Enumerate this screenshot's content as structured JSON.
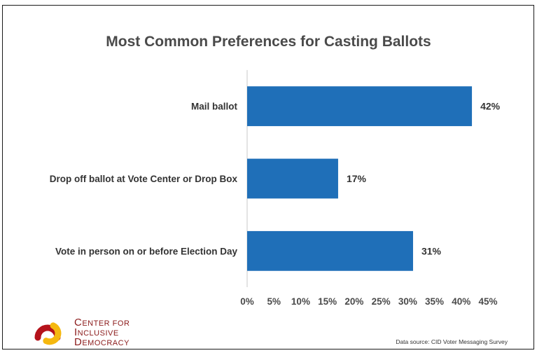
{
  "chart_data": {
    "type": "bar",
    "orientation": "horizontal",
    "title": "Most Common Preferences for Casting Ballots",
    "categories": [
      "Mail ballot",
      "Drop off ballot at Vote Center or Drop Box",
      "Vote in person on or before Election Day"
    ],
    "values": [
      42,
      17,
      31
    ],
    "value_labels": [
      "42%",
      "17%",
      "31%"
    ],
    "xlim": [
      0,
      45
    ],
    "xticks": [
      0,
      5,
      10,
      15,
      20,
      25,
      30,
      35,
      40,
      45
    ],
    "xtick_labels": [
      "0%",
      "5%",
      "10%",
      "15%",
      "20%",
      "25%",
      "30%",
      "35%",
      "40%",
      "45%"
    ],
    "bar_color": "#1f6fb8",
    "grid": false
  },
  "logo": {
    "line1": "Center for",
    "line2": "Inclusive",
    "line3": "Democracy",
    "colors": {
      "red": "#b5121b",
      "yellow": "#f5b80f",
      "text": "#8b1a1a"
    }
  },
  "source": "Data source: CID Voter Messaging Survey"
}
